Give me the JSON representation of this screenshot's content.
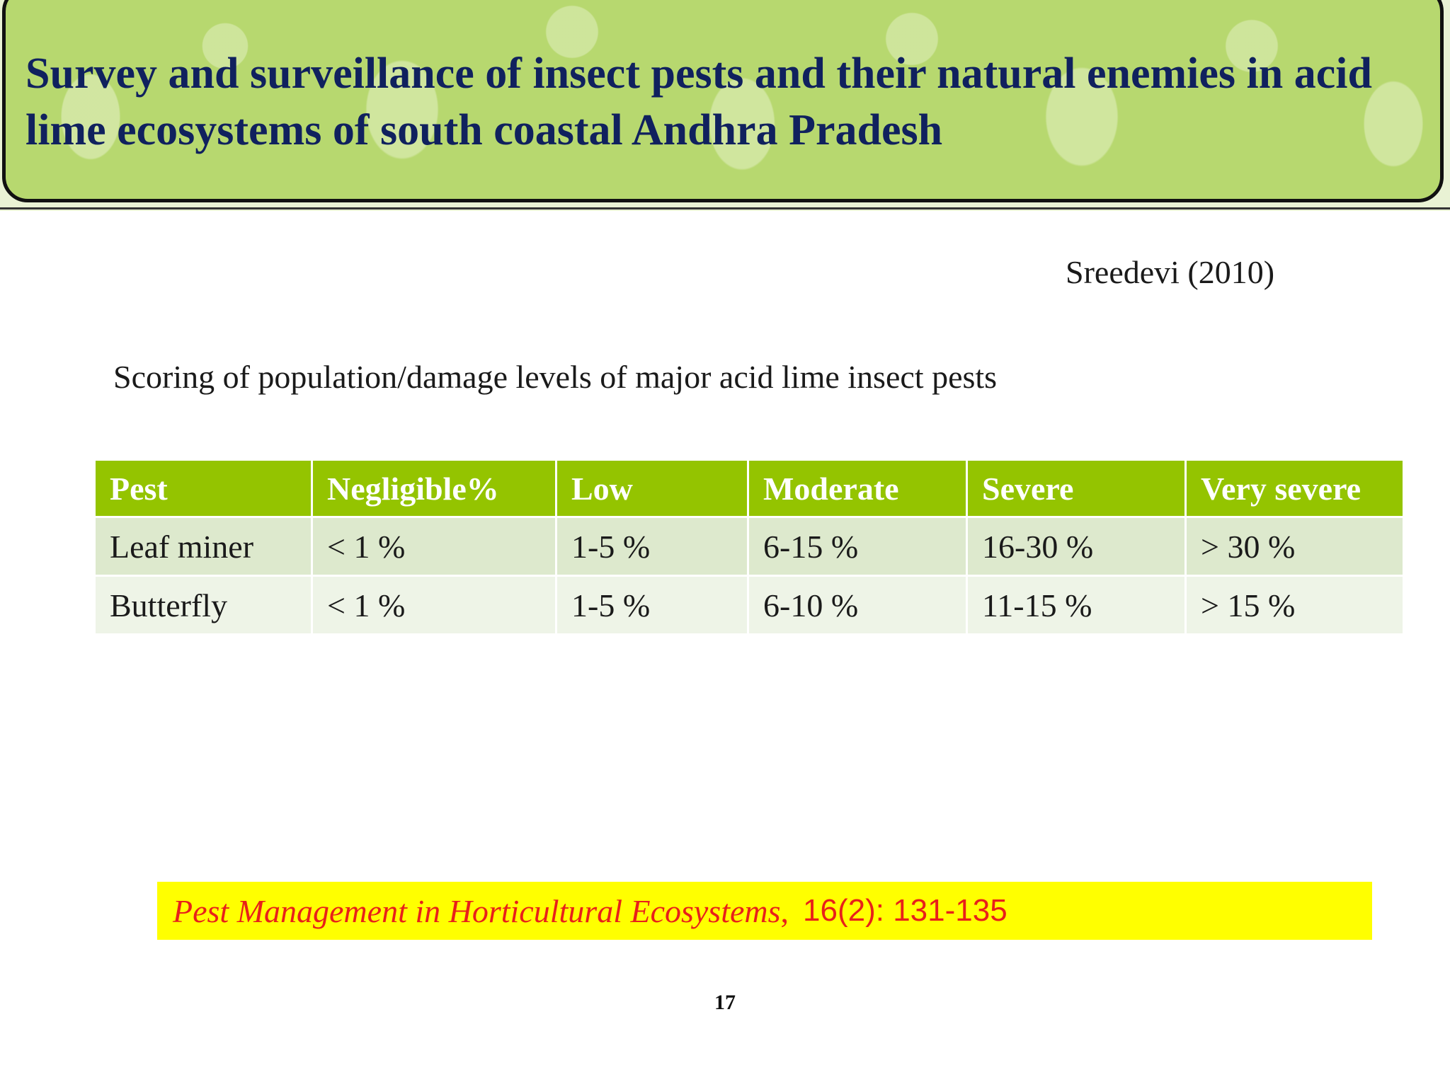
{
  "header": {
    "title": "Survey and surveillance of insect pests and their natural enemies in acid lime ecosystems of south coastal Andhra Pradesh"
  },
  "citation": "Sreedevi (2010)",
  "subtitle": "Scoring of population/damage levels of major acid lime insect pests",
  "table": {
    "headers": [
      "Pest",
      "Negligible%",
      "Low",
      "Moderate",
      "Severe",
      "Very severe"
    ],
    "rows": [
      [
        "Leaf miner",
        "< 1 %",
        "1-5 %",
        "6-15 %",
        "16-30 %",
        "> 30 %"
      ],
      [
        "Butterfly",
        "< 1 %",
        "1-5 %",
        "6-10 %",
        "11-15 %",
        "> 15 %"
      ]
    ]
  },
  "journal": {
    "name": "Pest Management in Horticultural Ecosystems",
    "comma": ",",
    "volume": "16(2): 131-135"
  },
  "page_number": "17",
  "colors": {
    "title": "#10215e",
    "banner": "#b7d86f",
    "table_header": "#94c400",
    "row_odd": "#dde9cd",
    "row_even": "#eef4e7",
    "journal_bg": "#ffff00",
    "journal_text": "#e8201a"
  }
}
